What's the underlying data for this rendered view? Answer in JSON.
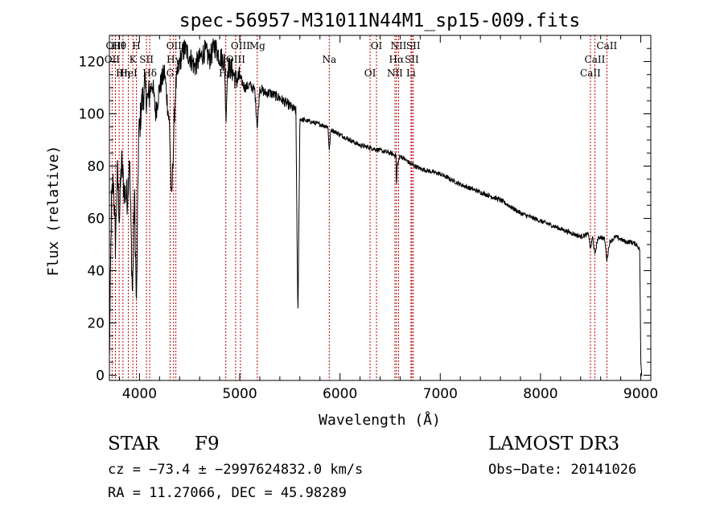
{
  "chart_data": {
    "type": "line",
    "title": "spec-56957-M31011N44M1_sp15-009.fits",
    "xlabel": "Wavelength (Å)",
    "ylabel": "Flux (relative)",
    "xlim": [
      3700,
      9100
    ],
    "ylim": [
      -2,
      130
    ],
    "x_ticks": [
      4000,
      5000,
      6000,
      7000,
      8000,
      9000
    ],
    "x_tick_labels": [
      "4000",
      "5000",
      "6000",
      "7000",
      "8000",
      "9000"
    ],
    "y_ticks": [
      0,
      20,
      40,
      60,
      80,
      100,
      120
    ],
    "y_tick_labels": [
      "0",
      "20",
      "40",
      "60",
      "80",
      "100",
      "120"
    ],
    "spectrum_anchors": {
      "x": [
        3700,
        3720,
        3740,
        3760,
        3780,
        3800,
        3820,
        3850,
        3880,
        3900,
        3930,
        3950,
        3970,
        3990,
        4020,
        4050,
        4080,
        4100,
        4130,
        4160,
        4200,
        4250,
        4300,
        4320,
        4340,
        4360,
        4400,
        4450,
        4500,
        4550,
        4600,
        4650,
        4700,
        4750,
        4800,
        4850,
        4861,
        4880,
        4920,
        4960,
        5000,
        5050,
        5100,
        5150,
        5175,
        5200,
        5250,
        5300,
        5400,
        5500,
        5560,
        5580,
        5600,
        5700,
        5800,
        5880,
        5893,
        5910,
        6000,
        6100,
        6200,
        6300,
        6400,
        6500,
        6560,
        6563,
        6570,
        6600,
        6700,
        6800,
        6900,
        7000,
        7200,
        7400,
        7600,
        7800,
        8000,
        8200,
        8400,
        8480,
        8498,
        8520,
        8542,
        8570,
        8600,
        8640,
        8662,
        8690,
        8750,
        8800,
        8850,
        8900,
        8960,
        8990,
        9000,
        9010
      ],
      "y": [
        5,
        65,
        75,
        50,
        78,
        60,
        82,
        70,
        68,
        85,
        30,
        70,
        25,
        90,
        103,
        110,
        105,
        108,
        112,
        100,
        110,
        116,
        95,
        65,
        90,
        110,
        120,
        125,
        122,
        118,
        121,
        124,
        121,
        126,
        122,
        120,
        98,
        118,
        117,
        113,
        114,
        110,
        111,
        109,
        95,
        110,
        108,
        108,
        106,
        103,
        101,
        20,
        98,
        97,
        96,
        95,
        86,
        94,
        92,
        90,
        88,
        87,
        86,
        85,
        84,
        70,
        80,
        84,
        81,
        79,
        78,
        77,
        73,
        70,
        67,
        62,
        59,
        56,
        53,
        54,
        48,
        53,
        46,
        52,
        53,
        52,
        44,
        51,
        53,
        52,
        51,
        51,
        50,
        48,
        5,
        0
      ]
    },
    "spectral_lines": [
      {
        "label": "Hθ",
        "wavelength": 3797
      },
      {
        "label": "OII",
        "wavelength": 3727
      },
      {
        "label": "Hη",
        "wavelength": 3835
      },
      {
        "label": "OIII",
        "wavelength": 3760
      },
      {
        "label": "K",
        "wavelength": 3934
      },
      {
        "label": "HeI",
        "wavelength": 3889
      },
      {
        "label": "H",
        "wavelength": 3969
      },
      {
        "label": "SII",
        "wavelength": 4070
      },
      {
        "label": "Hδ",
        "wavelength": 4102
      },
      {
        "label": "OIII",
        "wavelength": 4363
      },
      {
        "label": "Hγ",
        "wavelength": 4340
      },
      {
        "label": "G",
        "wavelength": 4305
      },
      {
        "label": "OIII",
        "wavelength": 5007
      },
      {
        "label": "OIII",
        "wavelength": 4959
      },
      {
        "label": "Hβ",
        "wavelength": 4861
      },
      {
        "label": "Mg",
        "wavelength": 5175
      },
      {
        "label": "Na",
        "wavelength": 5893
      },
      {
        "label": "OI",
        "wavelength": 6300
      },
      {
        "label": "OI",
        "wavelength": 6364
      },
      {
        "label": "Hα",
        "wavelength": 6563
      },
      {
        "label": "NII",
        "wavelength": 6548
      },
      {
        "label": "NII",
        "wavelength": 6584
      },
      {
        "label": "SII",
        "wavelength": 6716
      },
      {
        "label": "Li",
        "wavelength": 6708
      },
      {
        "label": "SII",
        "wavelength": 6731
      },
      {
        "label": "CaII",
        "wavelength": 8542
      },
      {
        "label": "CaII",
        "wavelength": 8498
      },
      {
        "label": "CaII",
        "wavelength": 8662
      }
    ],
    "colors": {
      "spectrum": "#000000",
      "line_marker": "#c00000",
      "axis": "#000000"
    }
  },
  "info": {
    "class": "STAR",
    "subclass": "F9",
    "survey": "LAMOST DR3",
    "cz": "cz = −73.4 ± −2997624832.0 km/s",
    "obs_date": "Obs−Date: 20141026",
    "coords": "RA =  11.27066, DEC =  45.98289"
  }
}
